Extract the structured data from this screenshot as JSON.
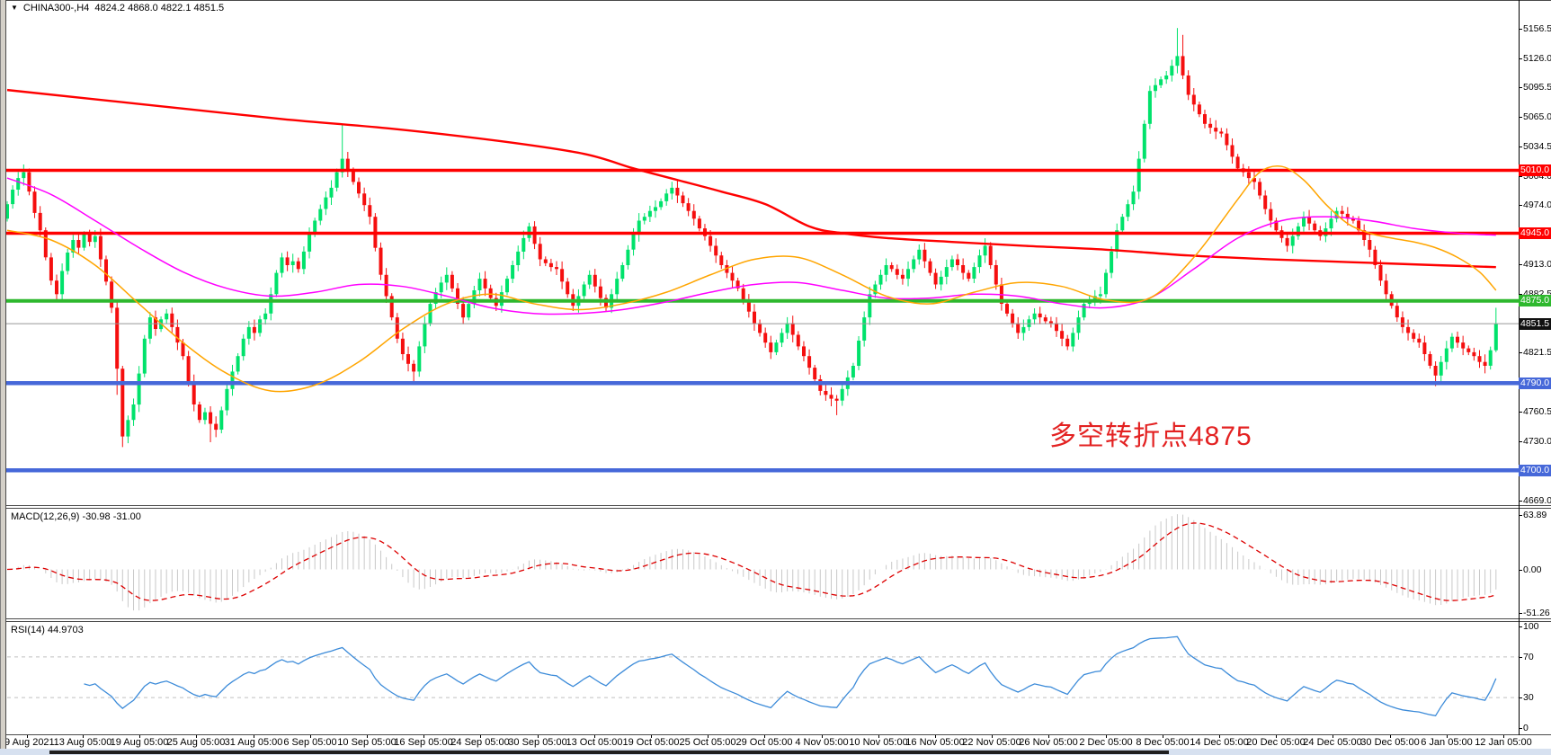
{
  "window": {
    "symbol_title": "CHINA300-,H4",
    "ohlc_title": "4824.2 4868.0 4822.1 4851.5"
  },
  "chart_data": {
    "type": "candlestick",
    "symbol": "CHINA300-,H4",
    "timeframe": "H4",
    "ohlc_display": {
      "open": 4824.2,
      "high": 4868.0,
      "low": 4822.1,
      "close": 4851.5
    },
    "price_axis": {
      "range_top": 5186,
      "range_bottom": 4664,
      "ticks": [
        5156.5,
        5126.0,
        5095.5,
        5065.0,
        5034.5,
        5004.0,
        4974.0,
        4913.0,
        4882.5,
        4821.5,
        4760.5,
        4730.0,
        4669.0
      ]
    },
    "x_labels": [
      "9 Aug 2021",
      "13 Aug 05:00",
      "19 Aug 05:00",
      "25 Aug 05:00",
      "31 Aug 05:00",
      "6 Sep 05:00",
      "10 Sep 05:00",
      "16 Sep 05:00",
      "24 Sep 05:00",
      "30 Sep 05:00",
      "13 Oct 05:00",
      "19 Oct 05:00",
      "25 Oct 05:00",
      "29 Oct 05:00",
      "4 Nov 05:00",
      "10 Nov 05:00",
      "16 Nov 05:00",
      "22 Nov 05:00",
      "26 Nov 05:00",
      "2 Dec 05:00",
      "8 Dec 05:00",
      "14 Dec 05:00",
      "20 Dec 05:00",
      "24 Dec 05:00",
      "30 Dec 05:00",
      "6 Jan 05:00",
      "12 Jan 05:00"
    ],
    "candles": {
      "first_open": 4960,
      "closes": [
        4975,
        4990,
        5002,
        5008,
        4988,
        4966,
        4948,
        4920,
        4896,
        4882,
        4906,
        4925,
        4938,
        4930,
        4944,
        4936,
        4942,
        4918,
        4895,
        4868,
        4805,
        4735,
        4752,
        4768,
        4800,
        4836,
        4858,
        4846,
        4856,
        4862,
        4848,
        4832,
        4818,
        4792,
        4768,
        4752,
        4760,
        4748,
        4742,
        4762,
        4784,
        4802,
        4818,
        4836,
        4848,
        4842,
        4856,
        4862,
        4882,
        4904,
        4920,
        4912,
        4916,
        4908,
        4926,
        4944,
        4958,
        4970,
        4982,
        4992,
        5008,
        5022,
        5010,
        4998,
        4986,
        4974,
        4962,
        4930,
        4902,
        4880,
        4858,
        4836,
        4820,
        4810,
        4802,
        4828,
        4852,
        4872,
        4884,
        4894,
        4902,
        4888,
        4872,
        4858,
        4872,
        4886,
        4898,
        4888,
        4878,
        4870,
        4884,
        4898,
        4912,
        4926,
        4940,
        4952,
        4934,
        4918,
        4914,
        4910,
        4908,
        4895,
        4882,
        4870,
        4880,
        4892,
        4902,
        4890,
        4878,
        4868,
        4882,
        4898,
        4912,
        4928,
        4944,
        4958,
        4962,
        4968,
        4972,
        4978,
        4986,
        4992,
        4984,
        4976,
        4968,
        4960,
        4950,
        4942,
        4932,
        4922,
        4912,
        4904,
        4896,
        4888,
        4876,
        4864,
        4852,
        4842,
        4832,
        4822,
        4832,
        4842,
        4852,
        4840,
        4828,
        4818,
        4806,
        4794,
        4782,
        4778,
        4774,
        4772,
        4784,
        4796,
        4808,
        4834,
        4858,
        4882,
        4892,
        4902,
        4912,
        4908,
        4902,
        4898,
        4908,
        4918,
        4928,
        4916,
        4904,
        4892,
        4900,
        4910,
        4918,
        4912,
        4904,
        4898,
        4910,
        4922,
        4932,
        4912,
        4892,
        4872,
        4862,
        4852,
        4842,
        4848,
        4856,
        4862,
        4858,
        4854,
        4852,
        4844,
        4836,
        4828,
        4842,
        4858,
        4872,
        4876,
        4880,
        4882,
        4904,
        4926,
        4948,
        4962,
        4975,
        4988,
        5022,
        5058,
        5092,
        5098,
        5104,
        5108,
        5118,
        5128,
        5108,
        5088,
        5078,
        5068,
        5058,
        5054,
        5050,
        5048,
        5036,
        5024,
        5012,
        5008,
        5002,
        4998,
        4984,
        4970,
        4958,
        4948,
        4940,
        4932,
        4942,
        4952,
        4962,
        4955,
        4948,
        4942,
        4950,
        4960,
        4968,
        4965,
        4960,
        4958,
        4948,
        4938,
        4928,
        4912,
        4896,
        4882,
        4870,
        4858,
        4848,
        4842,
        4836,
        4832,
        4820,
        4808,
        4798,
        4812,
        4826,
        4838,
        4832,
        4826,
        4822,
        4818,
        4812,
        4808,
        4824,
        4851.5
      ],
      "wick_overrides": {
        "3": [
          5016,
          null
        ],
        "20": [
          null,
          4778
        ],
        "21": [
          null,
          4724
        ],
        "22": [
          null,
          4728
        ],
        "37": [
          null,
          4729
        ],
        "61": [
          5058,
          null
        ],
        "74": [
          null,
          4791
        ],
        "151": [
          null,
          4757
        ],
        "213": [
          5157,
          null
        ],
        "214": [
          5150,
          null
        ],
        "260": [
          null,
          4787
        ],
        "271": [
          4868,
          4822.1
        ]
      }
    },
    "ma_lines": [
      {
        "name": "ma-long-red",
        "color": "#ff0000",
        "width": 2.4,
        "points": [
          [
            0,
            5093
          ],
          [
            25,
            5078
          ],
          [
            50,
            5063
          ],
          [
            70,
            5053
          ],
          [
            90,
            5040
          ],
          [
            105,
            5027
          ],
          [
            114,
            5012
          ],
          [
            122,
            5000
          ],
          [
            130,
            4988
          ],
          [
            138,
            4975
          ],
          [
            146,
            4952
          ],
          [
            152,
            4945
          ],
          [
            160,
            4940
          ],
          [
            172,
            4936
          ],
          [
            185,
            4932
          ],
          [
            200,
            4928
          ],
          [
            215,
            4922
          ],
          [
            230,
            4918
          ],
          [
            245,
            4915
          ],
          [
            260,
            4912
          ],
          [
            271,
            4910
          ]
        ]
      },
      {
        "name": "ma-mid-magenta",
        "color": "#ff00ff",
        "width": 1.5,
        "points": [
          [
            0,
            5002
          ],
          [
            8,
            4985
          ],
          [
            16,
            4958
          ],
          [
            24,
            4930
          ],
          [
            32,
            4905
          ],
          [
            40,
            4888
          ],
          [
            48,
            4880
          ],
          [
            56,
            4884
          ],
          [
            64,
            4892
          ],
          [
            72,
            4890
          ],
          [
            80,
            4880
          ],
          [
            88,
            4868
          ],
          [
            96,
            4862
          ],
          [
            104,
            4862
          ],
          [
            112,
            4866
          ],
          [
            120,
            4874
          ],
          [
            128,
            4884
          ],
          [
            136,
            4892
          ],
          [
            144,
            4894
          ],
          [
            152,
            4886
          ],
          [
            160,
            4878
          ],
          [
            168,
            4878
          ],
          [
            176,
            4882
          ],
          [
            184,
            4880
          ],
          [
            192,
            4872
          ],
          [
            200,
            4868
          ],
          [
            208,
            4878
          ],
          [
            216,
            4908
          ],
          [
            224,
            4940
          ],
          [
            232,
            4958
          ],
          [
            240,
            4962
          ],
          [
            248,
            4958
          ],
          [
            256,
            4950
          ],
          [
            264,
            4945
          ],
          [
            271,
            4943
          ]
        ]
      },
      {
        "name": "ma-fast-orange",
        "color": "#ffa500",
        "width": 1.5,
        "points": [
          [
            0,
            4948
          ],
          [
            8,
            4938
          ],
          [
            16,
            4912
          ],
          [
            24,
            4872
          ],
          [
            32,
            4832
          ],
          [
            40,
            4800
          ],
          [
            48,
            4782
          ],
          [
            56,
            4788
          ],
          [
            64,
            4812
          ],
          [
            72,
            4846
          ],
          [
            80,
            4872
          ],
          [
            88,
            4882
          ],
          [
            96,
            4872
          ],
          [
            104,
            4866
          ],
          [
            112,
            4872
          ],
          [
            120,
            4884
          ],
          [
            128,
            4902
          ],
          [
            136,
            4918
          ],
          [
            144,
            4920
          ],
          [
            152,
            4902
          ],
          [
            160,
            4880
          ],
          [
            168,
            4872
          ],
          [
            176,
            4884
          ],
          [
            184,
            4894
          ],
          [
            192,
            4890
          ],
          [
            200,
            4876
          ],
          [
            208,
            4878
          ],
          [
            216,
            4920
          ],
          [
            224,
            4980
          ],
          [
            228,
            5008
          ],
          [
            232,
            5014
          ],
          [
            236,
            5000
          ],
          [
            240,
            4975
          ],
          [
            244,
            4955
          ],
          [
            248,
            4945
          ],
          [
            252,
            4940
          ],
          [
            256,
            4936
          ],
          [
            260,
            4930
          ],
          [
            264,
            4920
          ],
          [
            268,
            4905
          ],
          [
            271,
            4886
          ]
        ]
      }
    ],
    "levels": [
      {
        "price": 5010.0,
        "label": "5010.0",
        "color": "#ff0000",
        "thickness": 3.5
      },
      {
        "price": 4945.0,
        "label": "4945.0",
        "color": "#ff0000",
        "thickness": 3.5
      },
      {
        "price": 4875.0,
        "label": "4875.0",
        "color": "#2eb82e",
        "thickness": 4
      },
      {
        "price": 4790.0,
        "label": "4790.0",
        "color": "#4668d9",
        "thickness": 4.5
      },
      {
        "price": 4700.0,
        "label": "4700.0",
        "color": "#4668d9",
        "thickness": 4.5
      }
    ],
    "current_price": {
      "value": 4851.5,
      "label": "4851.5",
      "line_color": "#999999",
      "box_color": "#111111"
    },
    "annotation": {
      "text": "多空转折点4875",
      "color": "#e32222"
    },
    "colors": {
      "bull": "#00e26b",
      "bear": "#f50f0f",
      "macd_hist": "#c8c8c8",
      "macd_signal": "#dd0000",
      "rsi_line": "#3c8bd9",
      "rsi_guide": "#c0c0c0"
    },
    "macd": {
      "label": "MACD(12,26,9) -30.98 -31.00",
      "fast": 12,
      "slow": 26,
      "signal_period": 9,
      "value": -30.98,
      "signal_value": -31.0,
      "axis_ticks": [
        {
          "label": "63.89",
          "value": 63.89
        },
        {
          "label": "0.00",
          "value": 0
        },
        {
          "label": "-51.26",
          "value": -51.26
        }
      ],
      "axis_max": 63.89,
      "axis_min": -51.26
    },
    "rsi": {
      "label": "RSI(14) 44.9703",
      "period": 14,
      "value": 44.9703,
      "axis_ticks": [
        {
          "label": "100",
          "value": 100
        },
        {
          "label": "70",
          "value": 70
        },
        {
          "label": "30",
          "value": 30
        },
        {
          "label": "0",
          "value": 0
        }
      ],
      "guide_levels": [
        70,
        30
      ]
    }
  }
}
